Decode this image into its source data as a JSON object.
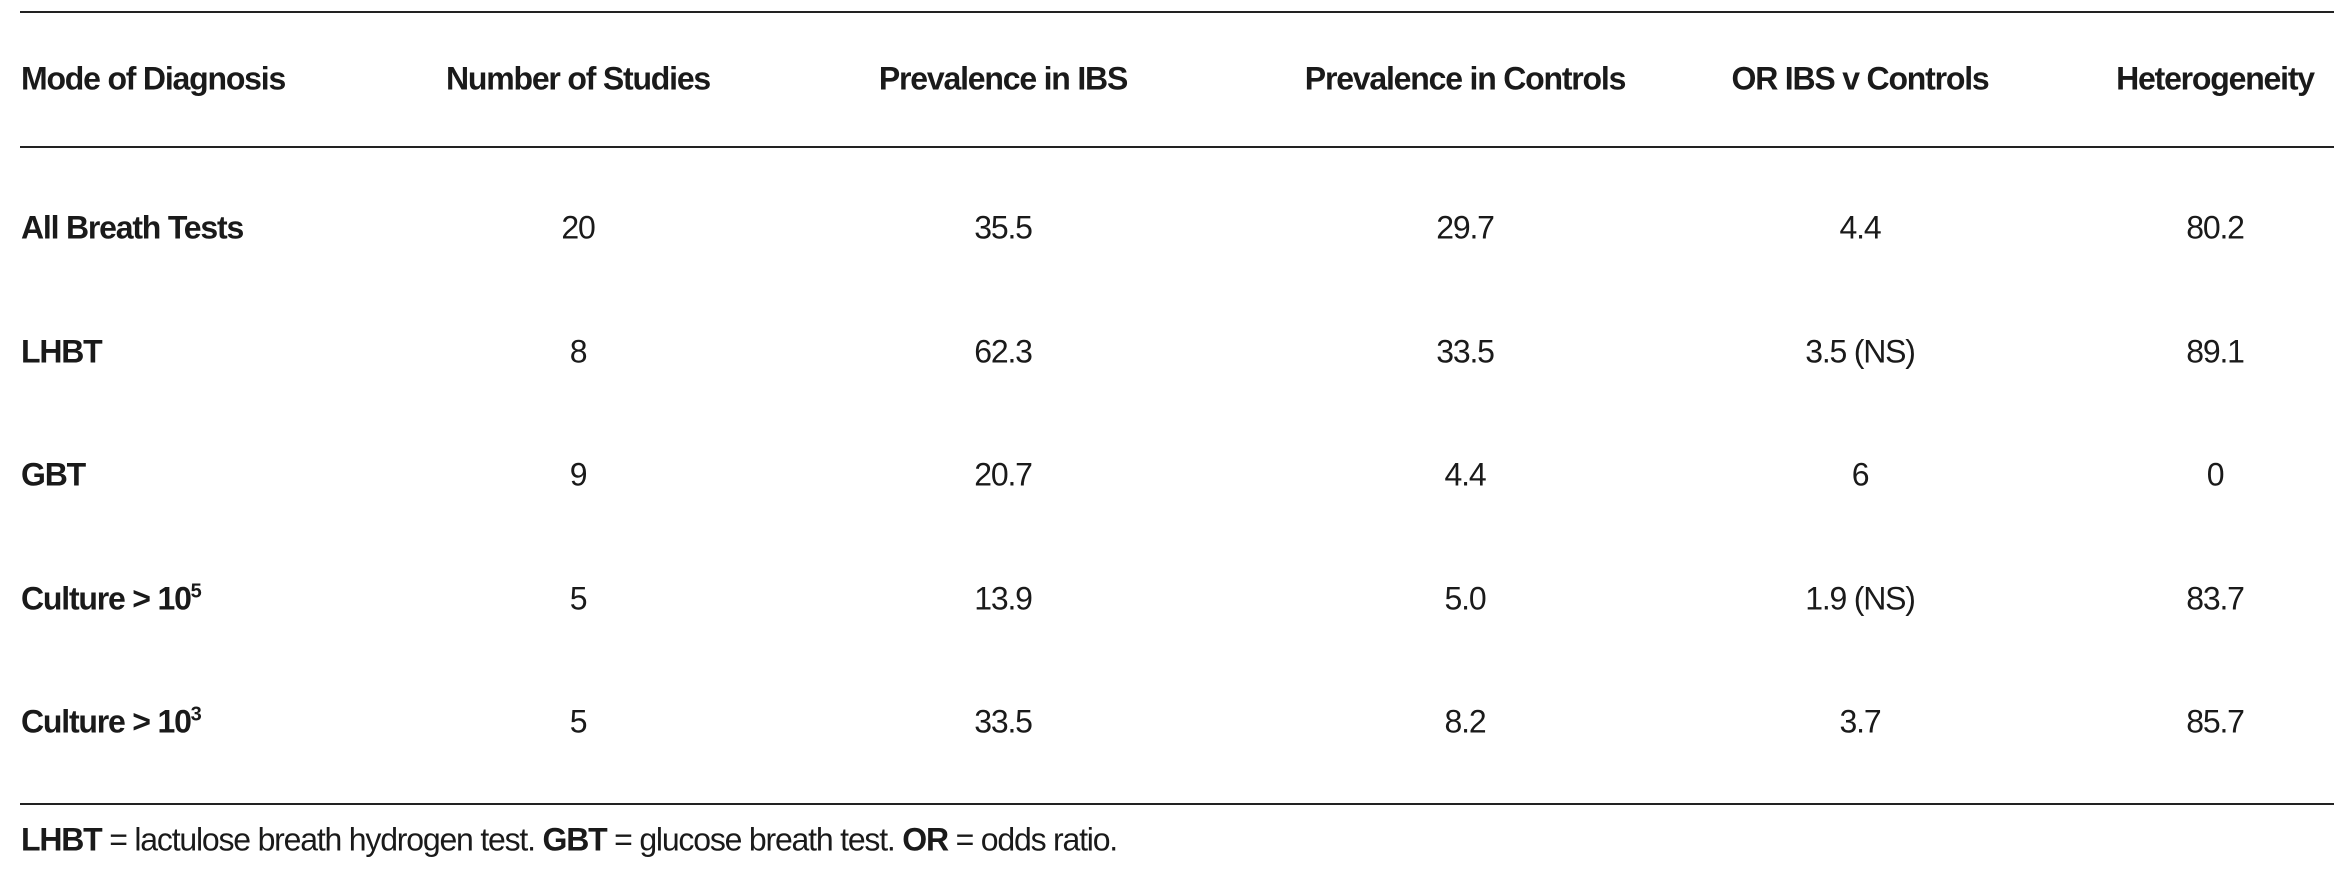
{
  "table": {
    "header": [
      "Mode of Diagnosis",
      "Number of Studies",
      "Prevalence in IBS",
      "Prevalence in Controls",
      "OR IBS v Controls",
      "Heterogeneity"
    ],
    "rows": [
      [
        {
          "text": "All Breath Tests"
        },
        "20",
        "35.5",
        "29.7",
        "4.4",
        "80.2"
      ],
      [
        {
          "text": "LHBT"
        },
        "8",
        "62.3",
        "33.5",
        "3.5 (NS)",
        "89.1"
      ],
      [
        {
          "text": "GBT"
        },
        "9",
        "20.7",
        "4.4",
        "6",
        "0"
      ],
      [
        {
          "text": "Culture > 10",
          "sup": "5"
        },
        "5",
        "13.9",
        "5.0",
        "1.9 (NS)",
        "83.7"
      ],
      [
        {
          "text": "Culture > 10",
          "sup": "3"
        },
        "5",
        "33.5",
        "8.2",
        "3.7",
        "85.7"
      ]
    ]
  },
  "footnote": [
    {
      "text": "LHBT",
      "bold": true
    },
    {
      "text": " = lactulose breath hydrogen test. "
    },
    {
      "text": "GBT",
      "bold": true
    },
    {
      "text": " = glucose breath test. "
    },
    {
      "text": "OR",
      "bold": true
    },
    {
      "text": " = odds ratio."
    }
  ]
}
